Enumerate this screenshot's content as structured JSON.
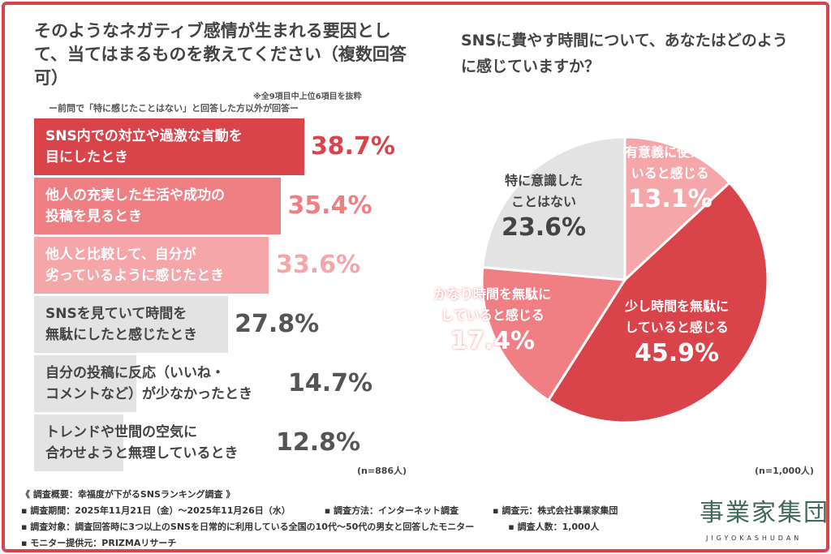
{
  "chart_data": [
    {
      "type": "bar",
      "orientation": "horizontal",
      "title": "そのようなネガティブ感情が生まれる要因として、当てはまるものを教えてください（複数回答可）",
      "note": "※全9項目中上位6項目を抜粋",
      "subtitle": "ー前問で「特に感じたことはない」と回答した方以外が回答ー",
      "categories": [
        "SNS内での対立や過激な言動を\n目にしたとき",
        "他人の充実した生活や成功の\n投稿を見るとき",
        "他人と比較して、自分が\n劣っているように感じたとき",
        "SNSを見ていて時間を\n無駄にしたと感じたとき",
        "自分の投稿に反応（いいね・\nコメントなど）が少なかったとき",
        "トレンドや世間の空気に\n合わせようと無理しているとき"
      ],
      "values": [
        38.7,
        35.4,
        33.6,
        27.8,
        14.7,
        12.8
      ],
      "labels": [
        "38.7%",
        "35.4%",
        "33.6%",
        "27.8%",
        "14.7%",
        "12.8%"
      ],
      "colors": [
        "#d9434a",
        "#f07f84",
        "#f5a6a9",
        "#e3e3e3",
        "#e3e3e3",
        "#e3e3e3"
      ],
      "label_colors": [
        "#d9434a",
        "#f07f84",
        "#f5a6a9",
        "#555555",
        "#555555",
        "#555555"
      ],
      "sample": "(n=886人)"
    },
    {
      "type": "pie",
      "title": "SNSに費やす時間について、あなたはどのように感じていますか？",
      "categories": [
        "有意義に使えているという感じる",
        "少し時間を無駄にしていると感じる",
        "かなり時間を無駄にしていると感じる",
        "特に意識したことはない"
      ],
      "display_names": [
        "有意義に使えて\nいると感じる",
        "少し時間を無駄に\nしていると感じる",
        "かなり時間を無駄に\nしていると感じる",
        "特に意識した\nことはない"
      ],
      "values": [
        13.1,
        45.9,
        17.4,
        23.6
      ],
      "labels": [
        "13.1%",
        "45.9%",
        "17.4%",
        "23.6%"
      ],
      "colors": [
        "#f5a6a9",
        "#d9434a",
        "#f07f84",
        "#e3e3e3"
      ],
      "sample": "(n=1,000人)"
    }
  ],
  "footer": {
    "heading": "《 調査概要：幸福度が下がるSNSランキング調査 》",
    "line1": [
      "▪ 調査期間：2025年11月21日（金）〜2025年11月26日（水）",
      "▪ 調査方法：インターネット調査",
      "▪ 調査元：株式会社事業家集団"
    ],
    "line2": [
      "▪ 調査対象：調査回答時に3つ以上のSNSを日常的に利用している全国の10代〜50代の男女と回答したモニター",
      "▪ 調査人数：1,000人"
    ],
    "line3": "▪ モニター提供元：PRIZMAリサーチ"
  },
  "logo": {
    "main": "事業家集団",
    "sub": "JIGYOKASHUDAN"
  }
}
